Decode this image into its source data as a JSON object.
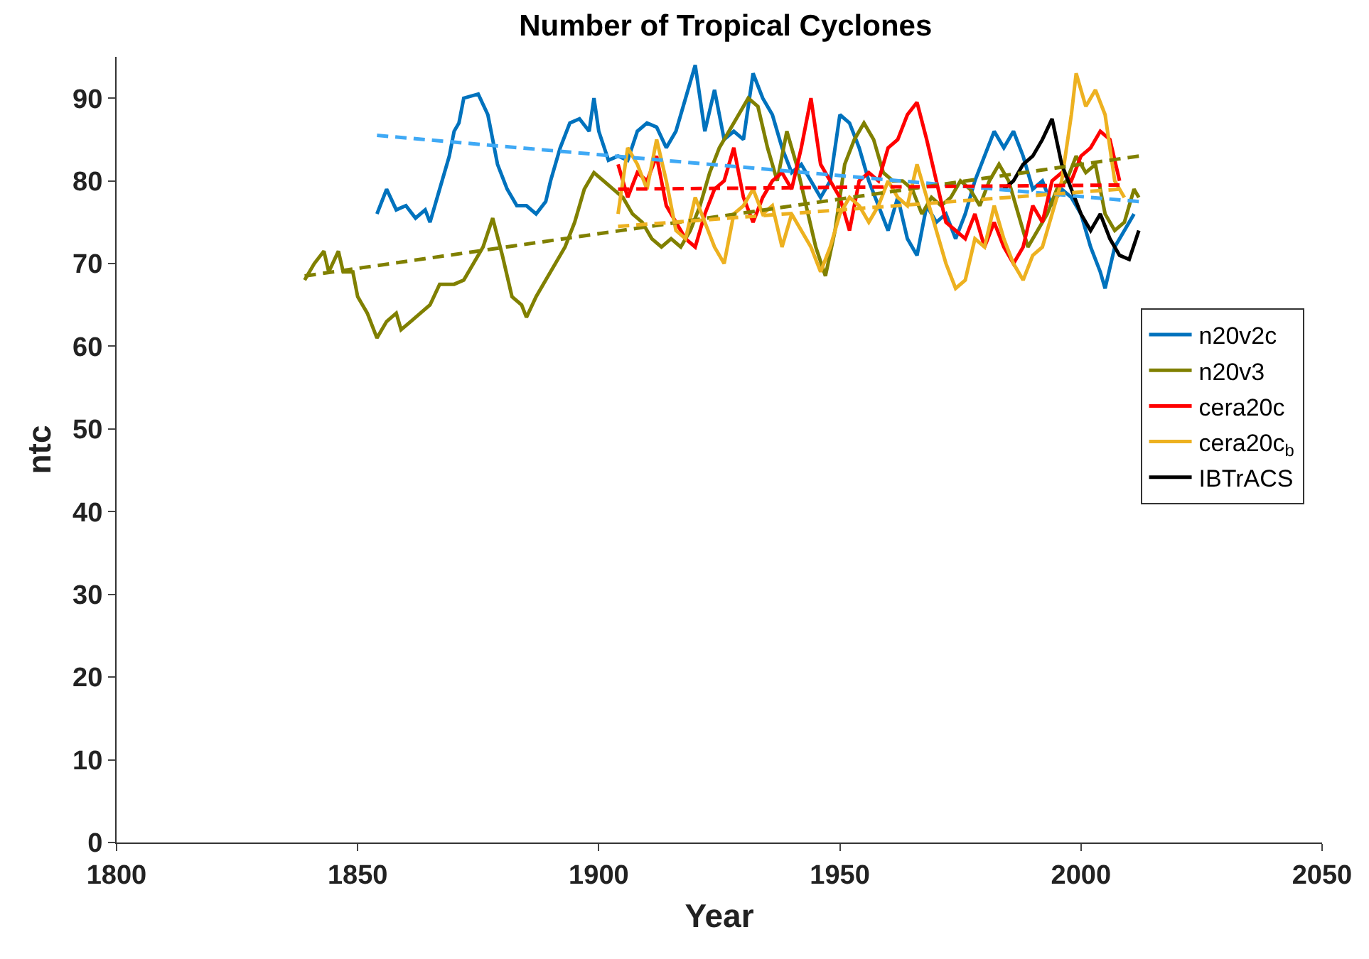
{
  "chart_data": {
    "type": "line",
    "title": "Number of Tropical Cyclones",
    "xlabel": "Year",
    "ylabel": "ntc",
    "xlim": [
      1800,
      2050
    ],
    "xticks": [
      1800,
      1850,
      1900,
      1950,
      2000,
      2050
    ],
    "ylim": [
      0,
      95
    ],
    "yticks": [
      0,
      10,
      20,
      30,
      40,
      50,
      60,
      70,
      80,
      90
    ],
    "grid": false,
    "legend": "right",
    "line_style": "solid",
    "marker": "none",
    "series": [
      {
        "name": "n20v2c",
        "color": "#0072bd",
        "x": [
          1854,
          1856,
          1858,
          1860,
          1862,
          1864,
          1865,
          1867,
          1869,
          1870,
          1871,
          1872,
          1875,
          1877,
          1879,
          1881,
          1883,
          1885,
          1887,
          1889,
          1890,
          1892,
          1894,
          1896,
          1898,
          1899,
          1900,
          1902,
          1904,
          1906,
          1908,
          1910,
          1912,
          1914,
          1916,
          1918,
          1920,
          1922,
          1924,
          1926,
          1928,
          1930,
          1932,
          1934,
          1936,
          1938,
          1940,
          1942,
          1944,
          1946,
          1948,
          1950,
          1952,
          1954,
          1956,
          1958,
          1960,
          1962,
          1964,
          1966,
          1968,
          1970,
          1972,
          1974,
          1976,
          1978,
          1980,
          1982,
          1984,
          1986,
          1988,
          1990,
          1992,
          1994,
          1996,
          1998,
          2000,
          2002,
          2004,
          2005,
          2007,
          2009,
          2011
        ],
        "values": [
          76,
          79,
          76.5,
          77,
          75.5,
          76.5,
          75,
          79,
          83,
          86,
          87,
          90,
          90.5,
          88,
          82,
          79,
          77,
          77,
          76,
          77.5,
          80,
          84,
          87,
          87.5,
          86,
          90,
          86,
          82.5,
          83,
          82.5,
          86,
          87,
          86.5,
          84,
          86,
          90,
          94,
          86,
          91,
          85,
          86,
          85,
          93,
          90,
          88,
          84,
          81,
          82,
          80,
          78,
          80,
          88,
          87,
          84,
          80,
          77,
          74,
          78,
          73,
          71,
          77,
          75,
          76,
          73,
          76,
          80,
          83,
          86,
          84,
          86,
          83,
          79,
          80,
          77,
          79,
          78,
          76,
          72,
          69,
          67,
          72,
          74,
          76
        ]
      },
      {
        "name": "n20v3",
        "color": "#808000",
        "x": [
          1839,
          1841,
          1843,
          1844,
          1846,
          1847,
          1849,
          1850,
          1852,
          1854,
          1856,
          1858,
          1859,
          1861,
          1863,
          1865,
          1867,
          1870,
          1872,
          1874,
          1876,
          1878,
          1880,
          1882,
          1884,
          1885,
          1887,
          1889,
          1891,
          1893,
          1895,
          1897,
          1899,
          1901,
          1903,
          1905,
          1907,
          1909,
          1911,
          1913,
          1915,
          1917,
          1919,
          1921,
          1923,
          1925,
          1927,
          1929,
          1931,
          1933,
          1935,
          1937,
          1939,
          1941,
          1943,
          1945,
          1947,
          1949,
          1951,
          1953,
          1955,
          1957,
          1959,
          1961,
          1963,
          1965,
          1967,
          1969,
          1971,
          1973,
          1975,
          1977,
          1979,
          1981,
          1983,
          1985,
          1987,
          1989,
          1991,
          1993,
          1995,
          1997,
          1999,
          2001,
          2003,
          2005,
          2007,
          2009,
          2011,
          2012
        ],
        "values": [
          68,
          70,
          71.5,
          69,
          71.5,
          69,
          69,
          66,
          64,
          61,
          63,
          64,
          62,
          63,
          64,
          65,
          67.5,
          67.5,
          68,
          70,
          72,
          75.5,
          71,
          66,
          65,
          63.5,
          66,
          68,
          70,
          72,
          75,
          79,
          81,
          80,
          79,
          78,
          76,
          75,
          73,
          72,
          73,
          72,
          74,
          77,
          81,
          84,
          86,
          88,
          90,
          89,
          84,
          80,
          86,
          82,
          77,
          72,
          68.5,
          74,
          82,
          85,
          87,
          85,
          81,
          80,
          80,
          79,
          76,
          78,
          77,
          78,
          80,
          79,
          77,
          80,
          82,
          80,
          76,
          72,
          74,
          76,
          79,
          80,
          83,
          81,
          82,
          76,
          74,
          75,
          79,
          78
        ]
      },
      {
        "name": "cera20c",
        "color": "#ff0000",
        "x": [
          1904,
          1906,
          1908,
          1910,
          1912,
          1914,
          1916,
          1918,
          1920,
          1922,
          1924,
          1926,
          1928,
          1930,
          1932,
          1934,
          1936,
          1938,
          1940,
          1942,
          1944,
          1946,
          1948,
          1950,
          1952,
          1954,
          1956,
          1958,
          1960,
          1962,
          1964,
          1966,
          1968,
          1970,
          1972,
          1974,
          1976,
          1978,
          1980,
          1982,
          1984,
          1986,
          1988,
          1990,
          1992,
          1994,
          1996,
          1998,
          2000,
          2002,
          2004,
          2006,
          2008
        ],
        "values": [
          82,
          78,
          81,
          80,
          83,
          77,
          75,
          73,
          72,
          76,
          79,
          80,
          84,
          78,
          75,
          78,
          80,
          81,
          79,
          84,
          90,
          82,
          80,
          78,
          74,
          80,
          81,
          80,
          84,
          85,
          88,
          89.5,
          85,
          80,
          75,
          74,
          73,
          76,
          72,
          75,
          72,
          70,
          72,
          77,
          75,
          80,
          81,
          80,
          83,
          84,
          86,
          85,
          80
        ]
      },
      {
        "name": "cera20c$_{b}$",
        "color": "#edb120",
        "x": [
          1904,
          1906,
          1908,
          1910,
          1912,
          1914,
          1916,
          1918,
          1920,
          1922,
          1924,
          1926,
          1928,
          1930,
          1932,
          1934,
          1936,
          1938,
          1940,
          1942,
          1944,
          1946,
          1948,
          1950,
          1952,
          1954,
          1956,
          1958,
          1960,
          1962,
          1964,
          1966,
          1968,
          1970,
          1972,
          1974,
          1976,
          1978,
          1980,
          1982,
          1984,
          1986,
          1988,
          1990,
          1992,
          1994,
          1996,
          1998,
          1999,
          2001,
          2003,
          2005,
          2007,
          2009
        ],
        "values": [
          76,
          84,
          82,
          79,
          85,
          80,
          74,
          73,
          78,
          75,
          72,
          70,
          76,
          77,
          79,
          76,
          77,
          72,
          76,
          74,
          72,
          69,
          72,
          76,
          78,
          77,
          75,
          77,
          80,
          78,
          77,
          82,
          78,
          74,
          70,
          67,
          68,
          73,
          72,
          77,
          73,
          70,
          68,
          71,
          72,
          76,
          80,
          88,
          93,
          89,
          91,
          88,
          80,
          78
        ]
      },
      {
        "name": "IBTrACS",
        "color": "#000000",
        "x": [
          1984,
          1986,
          1988,
          1990,
          1992,
          1994,
          1996,
          1998,
          2000,
          2002,
          2004,
          2006,
          2008,
          2010,
          2012
        ],
        "values": [
          79,
          80,
          82,
          83,
          85,
          87.5,
          82,
          79,
          76,
          74,
          76,
          73,
          71,
          70.5,
          74
        ]
      },
      {
        "color": "#3fa9f5",
        "line_style": "dashed",
        "x": [
          1854,
          2012
        ],
        "values": [
          85.5,
          77.5
        ]
      },
      {
        "color": "#808000",
        "line_style": "dashed",
        "x": [
          1839,
          2012
        ],
        "values": [
          68.5,
          83
        ]
      },
      {
        "color": "#ff0000",
        "line_style": "dashed",
        "x": [
          1904,
          2008
        ],
        "values": [
          79,
          79.5
        ]
      },
      {
        "color": "#edb120",
        "line_style": "dashed",
        "x": [
          1904,
          2008
        ],
        "values": [
          74.5,
          79
        ]
      }
    ]
  }
}
